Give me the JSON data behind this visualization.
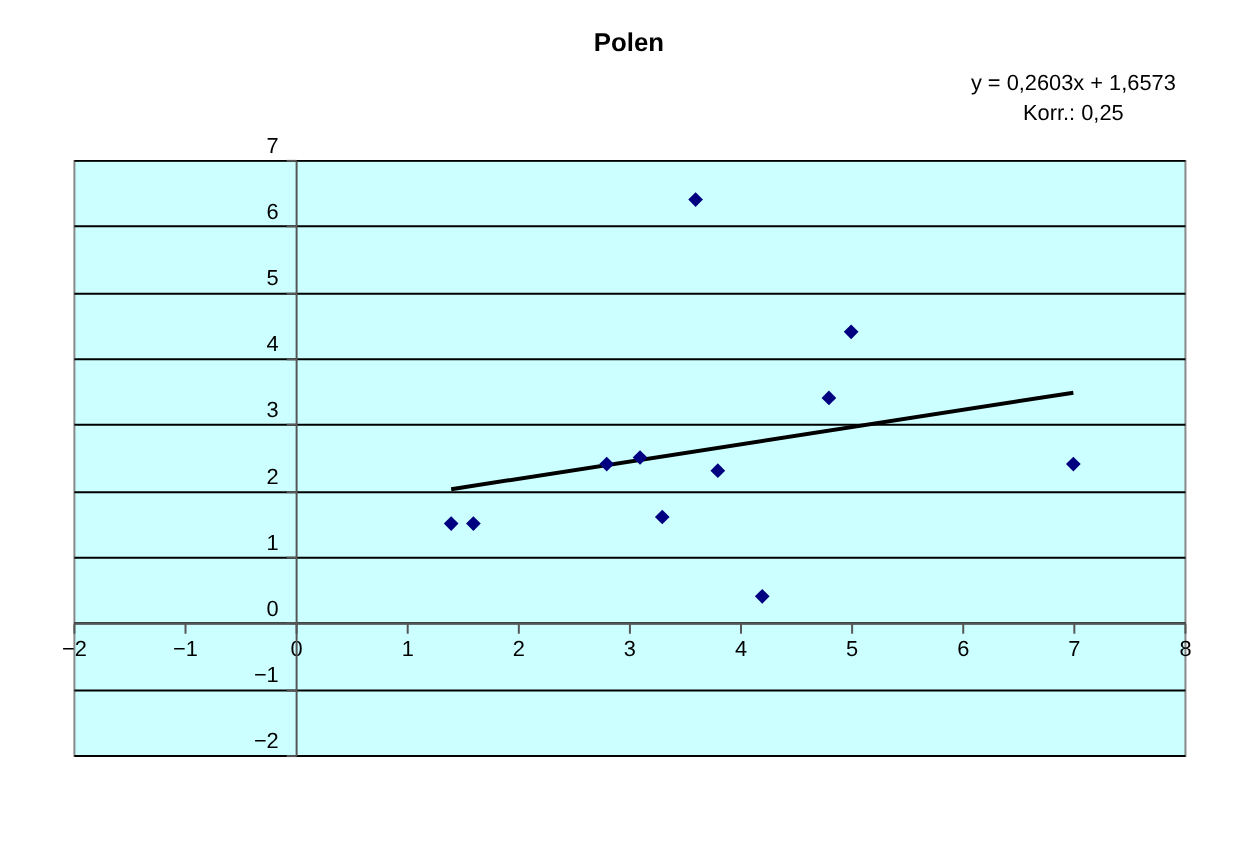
{
  "chart_data": {
    "type": "scatter",
    "title": "Polen",
    "annotations": [
      "y = 0,2603x + 1,6573",
      "Korr.: 0,25"
    ],
    "series": [
      {
        "color": "#000080",
        "marker": "diamond",
        "x": [
          1.4,
          1.6,
          2.8,
          3.1,
          3.3,
          3.6,
          3.8,
          4.2,
          4.8,
          5.0,
          7.0
        ],
        "values": [
          1.5,
          1.5,
          2.4,
          2.5,
          1.6,
          6.4,
          2.3,
          0.4,
          3.4,
          4.4,
          2.4
        ]
      },
      {
        "type": "line",
        "color": "#000000",
        "line_style": "solid",
        "x": [
          1.4,
          7.0
        ],
        "values": [
          2.02,
          3.48
        ]
      }
    ],
    "xlim": [
      -2,
      8
    ],
    "xticks": [
      -2,
      -1,
      0,
      1,
      2,
      3,
      4,
      5,
      6,
      7,
      8
    ],
    "ylim": [
      -2,
      7
    ],
    "yticks": [
      -2,
      -1,
      0,
      1,
      2,
      3,
      4,
      5,
      6,
      7
    ],
    "grid": "y"
  }
}
